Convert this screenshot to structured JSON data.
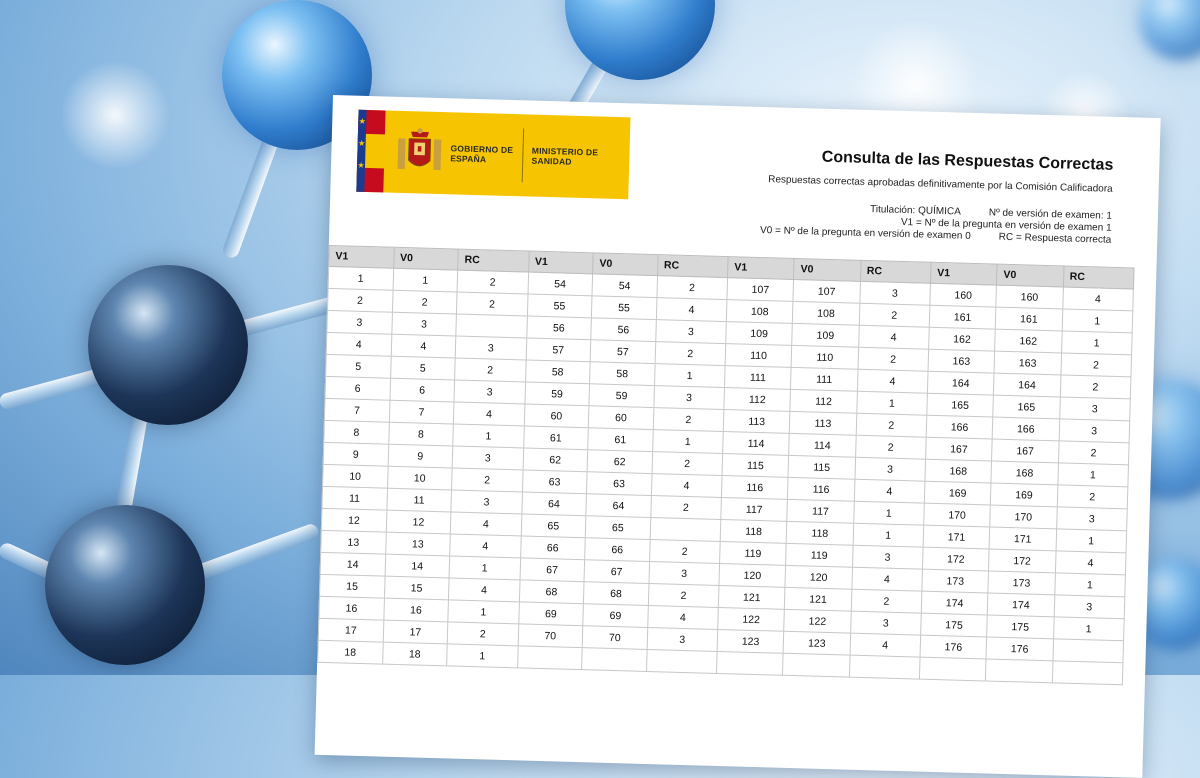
{
  "header": {
    "logo_gobierno": "GOBIERNO DE ESPAÑA",
    "logo_ministerio": "MINISTERIO DE SANIDAD",
    "title": "Consulta de las Respuestas Correctas",
    "subtitle": "Respuestas correctas aprobadas definitivamente por la Comisión Calificadora",
    "titulacion": "Titulación: QUÍMICA",
    "version": "Nº de versión de examen: 1",
    "legend_v1": "V1 = Nº de la pregunta en versión de examen 1",
    "legend_v0": "V0 = Nº de la pregunta en versión de examen 0",
    "legend_rc": "RC = Respuesta correcta"
  },
  "table": {
    "columns": [
      "V1",
      "V0",
      "RC",
      "V1",
      "V0",
      "RC",
      "V1",
      "V0",
      "RC",
      "V1",
      "V0",
      "RC"
    ],
    "rows": [
      [
        "1",
        "1",
        "2",
        "54",
        "54",
        "2",
        "107",
        "107",
        "3",
        "160",
        "160",
        "4"
      ],
      [
        "2",
        "2",
        "2",
        "55",
        "55",
        "4",
        "108",
        "108",
        "2",
        "161",
        "161",
        "1"
      ],
      [
        "3",
        "3",
        "",
        "56",
        "56",
        "3",
        "109",
        "109",
        "4",
        "162",
        "162",
        "1"
      ],
      [
        "4",
        "4",
        "3",
        "57",
        "57",
        "2",
        "110",
        "110",
        "2",
        "163",
        "163",
        "2"
      ],
      [
        "5",
        "5",
        "2",
        "58",
        "58",
        "1",
        "111",
        "111",
        "4",
        "164",
        "164",
        "2"
      ],
      [
        "6",
        "6",
        "3",
        "59",
        "59",
        "3",
        "112",
        "112",
        "1",
        "165",
        "165",
        "3"
      ],
      [
        "7",
        "7",
        "4",
        "60",
        "60",
        "2",
        "113",
        "113",
        "2",
        "166",
        "166",
        "3"
      ],
      [
        "8",
        "8",
        "1",
        "61",
        "61",
        "1",
        "114",
        "114",
        "2",
        "167",
        "167",
        "2"
      ],
      [
        "9",
        "9",
        "3",
        "62",
        "62",
        "2",
        "115",
        "115",
        "3",
        "168",
        "168",
        "1"
      ],
      [
        "10",
        "10",
        "2",
        "63",
        "63",
        "4",
        "116",
        "116",
        "4",
        "169",
        "169",
        "2"
      ],
      [
        "11",
        "11",
        "3",
        "64",
        "64",
        "2",
        "117",
        "117",
        "1",
        "170",
        "170",
        "3"
      ],
      [
        "12",
        "12",
        "4",
        "65",
        "65",
        "",
        "118",
        "118",
        "1",
        "171",
        "171",
        "1"
      ],
      [
        "13",
        "13",
        "4",
        "66",
        "66",
        "2",
        "119",
        "119",
        "3",
        "172",
        "172",
        "4"
      ],
      [
        "14",
        "14",
        "1",
        "67",
        "67",
        "3",
        "120",
        "120",
        "4",
        "173",
        "173",
        "1"
      ],
      [
        "15",
        "15",
        "4",
        "68",
        "68",
        "2",
        "121",
        "121",
        "2",
        "174",
        "174",
        "3"
      ],
      [
        "16",
        "16",
        "1",
        "69",
        "69",
        "4",
        "122",
        "122",
        "3",
        "175",
        "175",
        "1"
      ],
      [
        "17",
        "17",
        "2",
        "70",
        "70",
        "3",
        "123",
        "123",
        "4",
        "176",
        "176",
        ""
      ],
      [
        "18",
        "18",
        "1",
        "",
        "",
        "",
        "",
        "",
        "",
        "",
        "",
        ""
      ]
    ]
  }
}
